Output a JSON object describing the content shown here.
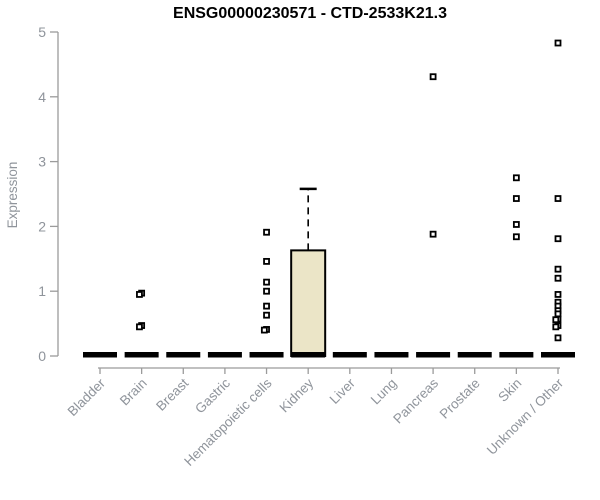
{
  "title": "ENSG00000230571 - CTD-2533K21.3",
  "chart_data": {
    "type": "boxplot",
    "title": "ENSG00000230571 - CTD-2533K21.3",
    "ylabel": "Expression",
    "xlabel": "",
    "ylim": [
      0,
      5
    ],
    "yticks": [
      0,
      1,
      2,
      3,
      4,
      5
    ],
    "grid": false,
    "legend": "none",
    "categories": [
      "Bladder",
      "Brain",
      "Breast",
      "Gastric",
      "Hematopoietic cells",
      "Kidney",
      "Liver",
      "Lung",
      "Pancreas",
      "Prostate",
      "Skin",
      "Unknown / Other"
    ],
    "medians": [
      0,
      0,
      0,
      0,
      0,
      0,
      0,
      0,
      0,
      0,
      0,
      0
    ],
    "points": {
      "Bladder": [],
      "Brain": [
        0.97,
        0.95,
        0.47,
        0.45
      ],
      "Breast": [],
      "Gastric": [],
      "Hematopoietic cells": [
        1.91,
        1.46,
        1.14,
        1.0,
        0.77,
        0.63,
        0.41,
        0.4
      ],
      "Kidney": [],
      "Liver": [],
      "Lung": [],
      "Pancreas": [
        4.31,
        1.88
      ],
      "Prostate": [],
      "Skin": [
        2.75,
        2.43,
        2.03,
        1.84
      ],
      "Unknown / Other": [
        4.83,
        2.43,
        1.81,
        1.34,
        1.2,
        0.95,
        0.83,
        0.77,
        0.7,
        0.65,
        0.57,
        0.56,
        0.47,
        0.45,
        0.28
      ]
    },
    "boxes": [
      {
        "category": "Kidney",
        "q1": 0,
        "median": 0,
        "q3": 1.63,
        "whisker_low": 0,
        "whisker_high": 2.58
      }
    ],
    "colors": {
      "box_fill": "#ebe5c7",
      "box_border": "#000000",
      "point_color": "#000000",
      "median_color": "#000000",
      "axis_color": "#9b9b9b",
      "label_color": "#8f949b",
      "title_color": "#000000",
      "background": "#ffffff"
    }
  }
}
